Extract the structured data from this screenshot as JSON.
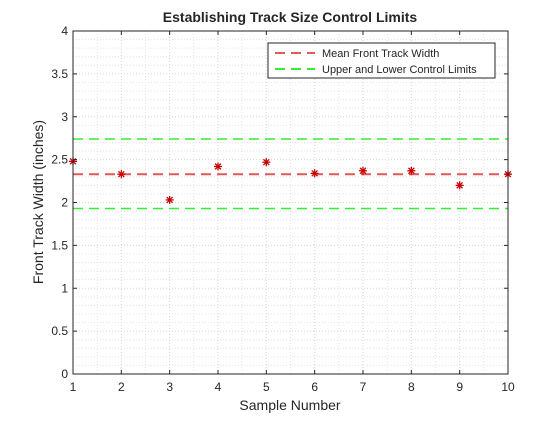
{
  "chart_data": {
    "type": "scatter",
    "title": "Establishing Track Size Control Limits",
    "xlabel": "Sample Number",
    "ylabel": "Front Track Width (inches)",
    "xlim": [
      1,
      10
    ],
    "ylim": [
      0,
      4
    ],
    "xticks": [
      "1",
      "2",
      "3",
      "4",
      "5",
      "6",
      "7",
      "8",
      "9",
      "10"
    ],
    "yticks": [
      "0",
      "0.5",
      "1",
      "1.5",
      "2",
      "2.5",
      "3",
      "3.5",
      "4"
    ],
    "grid": true,
    "minor_grid": true,
    "legend_position": "top-right",
    "samples": {
      "marker": "asterisk",
      "color": "#cc0000",
      "x": [
        1,
        2,
        3,
        4,
        5,
        6,
        7,
        8,
        9,
        10
      ],
      "y": [
        2.48,
        2.33,
        2.03,
        2.42,
        2.47,
        2.34,
        2.37,
        2.37,
        2.2,
        2.33
      ]
    },
    "series": [
      {
        "name": "Mean Front Track Width",
        "value": 2.33,
        "color": "#e05a5a",
        "style": "dashed"
      },
      {
        "name": "Upper and Lower Control Limits",
        "values": [
          2.74,
          1.93
        ],
        "color": "#33ee33",
        "style": "dashed"
      }
    ]
  }
}
